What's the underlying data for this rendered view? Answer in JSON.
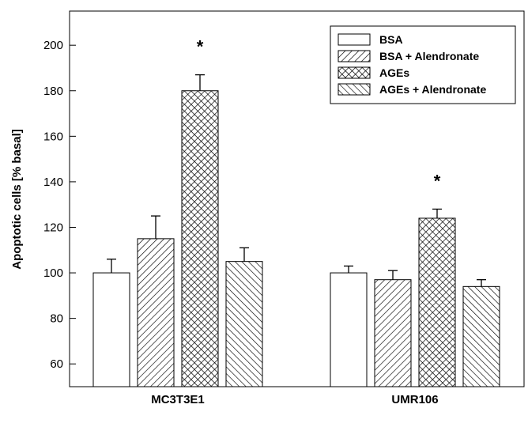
{
  "chart_data": {
    "type": "bar",
    "title": "",
    "xlabel": "",
    "ylabel": "Apoptotic cells [% basal]",
    "categories": [
      "MC3T3E1",
      "UMR106"
    ],
    "ylim": [
      50,
      215
    ],
    "yticks": [
      60,
      80,
      100,
      120,
      140,
      160,
      180,
      200
    ],
    "grid": false,
    "legend_position": "top-right",
    "series": [
      {
        "name": "BSA",
        "pattern": "none",
        "values": [
          100,
          100
        ],
        "errors": [
          6,
          3
        ]
      },
      {
        "name": "BSA + Alendronate",
        "pattern": "diagonal",
        "values": [
          115,
          97
        ],
        "errors": [
          10,
          4
        ]
      },
      {
        "name": "AGEs",
        "pattern": "crosshatch",
        "values": [
          180,
          124
        ],
        "errors": [
          7,
          4
        ]
      },
      {
        "name": "AGEs + Alendronate",
        "pattern": "backdiagonal",
        "values": [
          105,
          94
        ],
        "errors": [
          6,
          3
        ]
      }
    ],
    "significance_marks": [
      {
        "category": "MC3T3E1",
        "series": "AGEs",
        "symbol": "*"
      },
      {
        "category": "UMR106",
        "series": "AGEs",
        "symbol": "*"
      }
    ]
  },
  "colors": {
    "bar_fill": "#ffffff",
    "stroke": "#000000"
  }
}
